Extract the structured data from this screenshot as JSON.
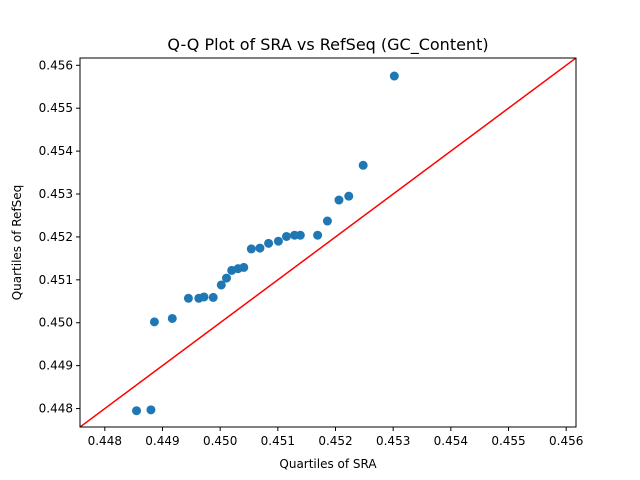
{
  "chart_data": {
    "type": "scatter",
    "title": "Q-Q Plot of SRA vs RefSeq (GC_Content)",
    "xlabel": "Quartiles of SRA",
    "ylabel": "Quartiles of RefSeq",
    "xlim": [
      0.44757,
      0.45617
    ],
    "ylim": [
      0.44757,
      0.45617
    ],
    "xticks": [
      "0.448",
      "0.449",
      "0.450",
      "0.451",
      "0.452",
      "0.453",
      "0.454",
      "0.455",
      "0.456"
    ],
    "yticks": [
      "0.448",
      "0.449",
      "0.450",
      "0.451",
      "0.452",
      "0.453",
      "0.454",
      "0.455",
      "0.456"
    ],
    "grid": false,
    "point_color": "#1f77b4",
    "reference_line": {
      "from": [
        0.44757,
        0.44757
      ],
      "to": [
        0.45617,
        0.45617
      ],
      "color": "#ff0000"
    },
    "points": [
      [
        0.44855,
        0.44795
      ],
      [
        0.4488,
        0.44797
      ],
      [
        0.44886,
        0.45002
      ],
      [
        0.44917,
        0.4501
      ],
      [
        0.44945,
        0.45057
      ],
      [
        0.44963,
        0.45057
      ],
      [
        0.44972,
        0.4506
      ],
      [
        0.44988,
        0.45059
      ],
      [
        0.45002,
        0.45088
      ],
      [
        0.45011,
        0.45104
      ],
      [
        0.4502,
        0.45122
      ],
      [
        0.45031,
        0.45126
      ],
      [
        0.45041,
        0.45129
      ],
      [
        0.45054,
        0.45172
      ],
      [
        0.45069,
        0.45174
      ],
      [
        0.45084,
        0.45185
      ],
      [
        0.45101,
        0.4519
      ],
      [
        0.45115,
        0.45201
      ],
      [
        0.45129,
        0.45204
      ],
      [
        0.45139,
        0.45204
      ],
      [
        0.45169,
        0.45204
      ],
      [
        0.45186,
        0.45237
      ],
      [
        0.45206,
        0.45286
      ],
      [
        0.45223,
        0.45295
      ],
      [
        0.45248,
        0.45367
      ],
      [
        0.45302,
        0.45575
      ]
    ]
  }
}
